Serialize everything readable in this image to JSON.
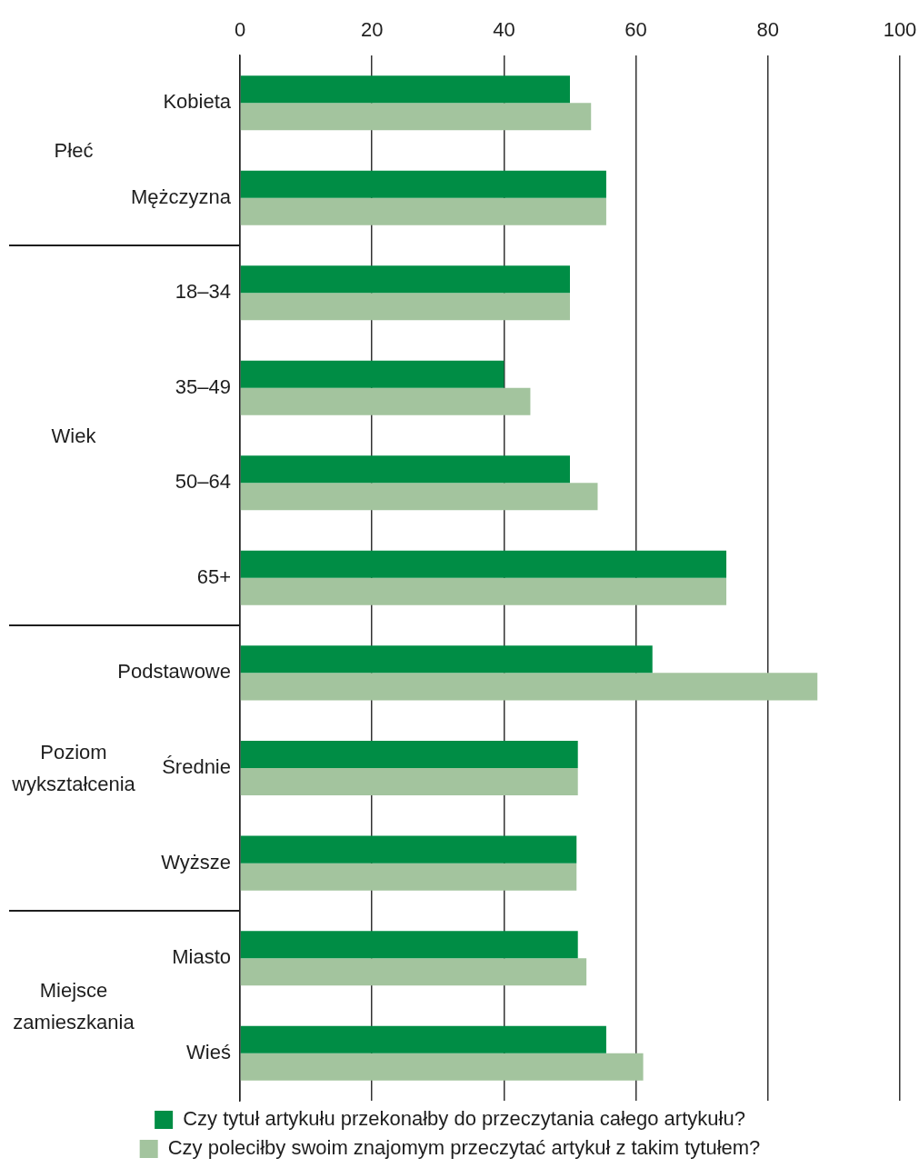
{
  "chart_data": [
    {
      "type": "bar",
      "orientation": "horizontal",
      "ylabel": "Płeć",
      "categories": [
        "Kobieta",
        "Mężczyzna"
      ],
      "series": [
        {
          "color": "#008d45",
          "values": [
            50,
            55.5
          ]
        },
        {
          "color": "#a3c49e",
          "values": [
            53.2,
            55.5
          ]
        }
      ],
      "xlim": [
        0,
        100
      ],
      "xticks": [
        0,
        20,
        40,
        60,
        80,
        100
      ],
      "grid": "x"
    },
    {
      "type": "bar",
      "orientation": "horizontal",
      "ylabel": "Wiek",
      "categories": [
        "18–34",
        "35–49",
        "50–64",
        "65+"
      ],
      "series": [
        {
          "color": "#008d45",
          "values": [
            50,
            40,
            50,
            73.7
          ]
        },
        {
          "color": "#a3c49e",
          "values": [
            50,
            44,
            54.2,
            73.7
          ]
        }
      ],
      "xlim": [
        0,
        100
      ],
      "xticks": [
        0,
        20,
        40,
        60,
        80,
        100
      ],
      "grid": "x",
      "tick_labels": "y"
    },
    {
      "type": "bar",
      "orientation": "horizontal",
      "ylabel": "Poziom wykształcenia",
      "categories": [
        "Podstawowe",
        "Średnie",
        "Wyższe"
      ],
      "series": [
        {
          "color": "#008d45",
          "values": [
            62.5,
            51.2,
            51
          ]
        },
        {
          "color": "#a3c49e",
          "values": [
            87.5,
            51.2,
            51
          ]
        }
      ],
      "xlim": [
        0,
        100
      ],
      "xticks": [
        0,
        20,
        40,
        60,
        80,
        100
      ],
      "grid": "x",
      "tick_labels": "y"
    },
    {
      "type": "bar",
      "orientation": "horizontal",
      "ylabel": "Miejsce zamieszkania",
      "categories": [
        "Miasto",
        "Wieś"
      ],
      "series": [
        {
          "name": "Czy tytuł artykułu przekonałby do przeczytania całego artykułu?",
          "color": "#008d45",
          "values": [
            51.2,
            55.5
          ]
        },
        {
          "name": "Czy poleciłby swoim znajomym przeczytać artykuł z takim tytułem?",
          "color": "#a3c49e",
          "values": [
            52.5,
            61.1
          ]
        }
      ],
      "xlim": [
        0,
        100
      ],
      "xticks": [
        0,
        20,
        40,
        60,
        80,
        100
      ],
      "grid": "x",
      "tick_labels": "y",
      "legend": "bottom"
    }
  ]
}
